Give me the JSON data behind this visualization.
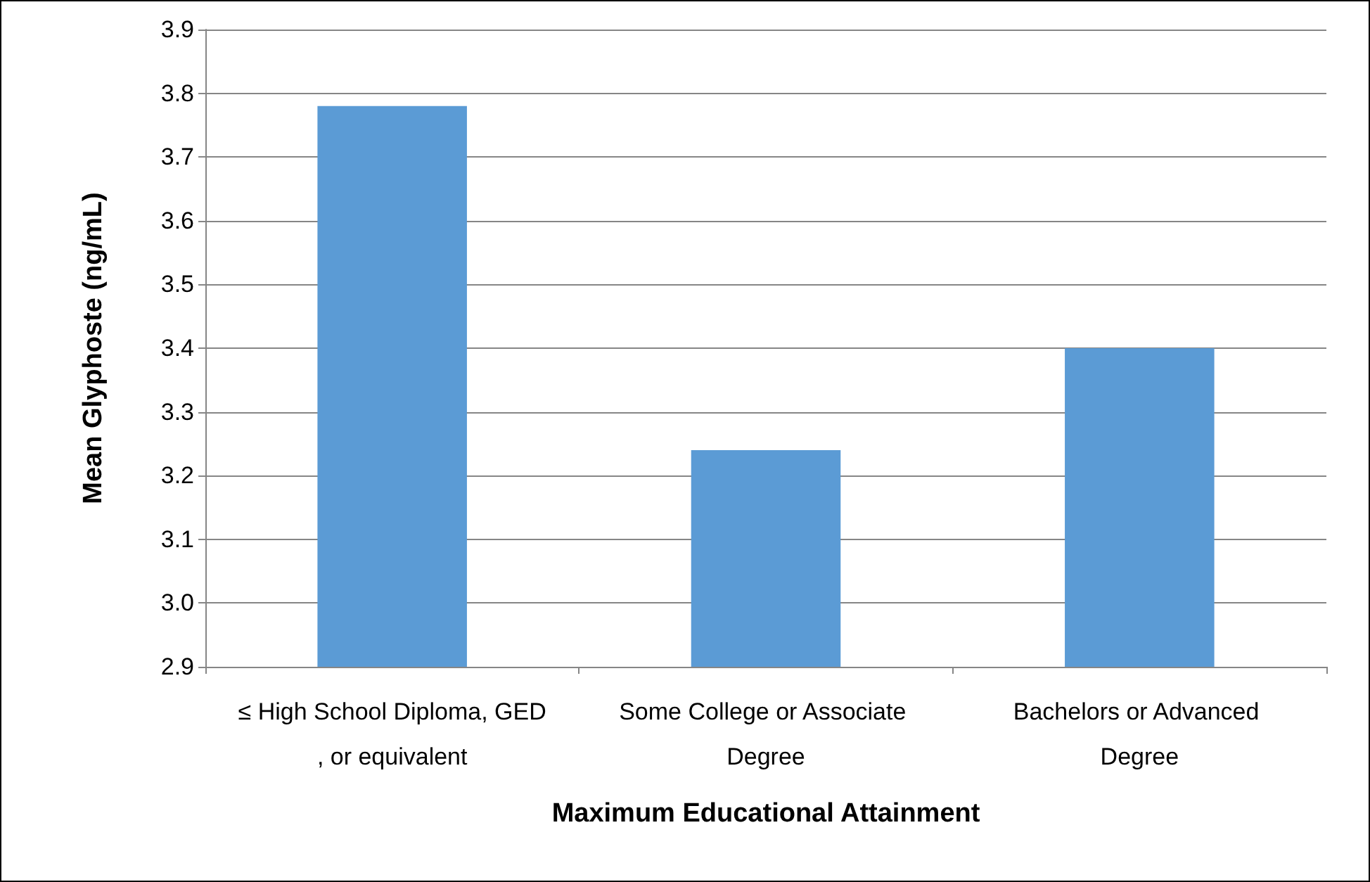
{
  "chart_data": {
    "type": "bar",
    "xlabel": "Maximum Educational Attainment",
    "ylabel": "Mean Glyphoste (ng/mL)",
    "categories": [
      "≤ High School Diploma, GED, or equivalent",
      "Some College or Associate Degree",
      "Bachelors or Advanced Degree"
    ],
    "values": [
      3.78,
      3.24,
      3.4
    ],
    "color": "#5b9bd5",
    "ylim": [
      2.9,
      3.9
    ],
    "yticks": [
      2.9,
      {
        "value": 3.0,
        "label": "3.0"
      },
      3.1,
      3.2,
      3.3,
      3.4,
      3.5,
      3.6,
      3.7,
      3.8,
      3.9
    ],
    "grid": "y"
  }
}
